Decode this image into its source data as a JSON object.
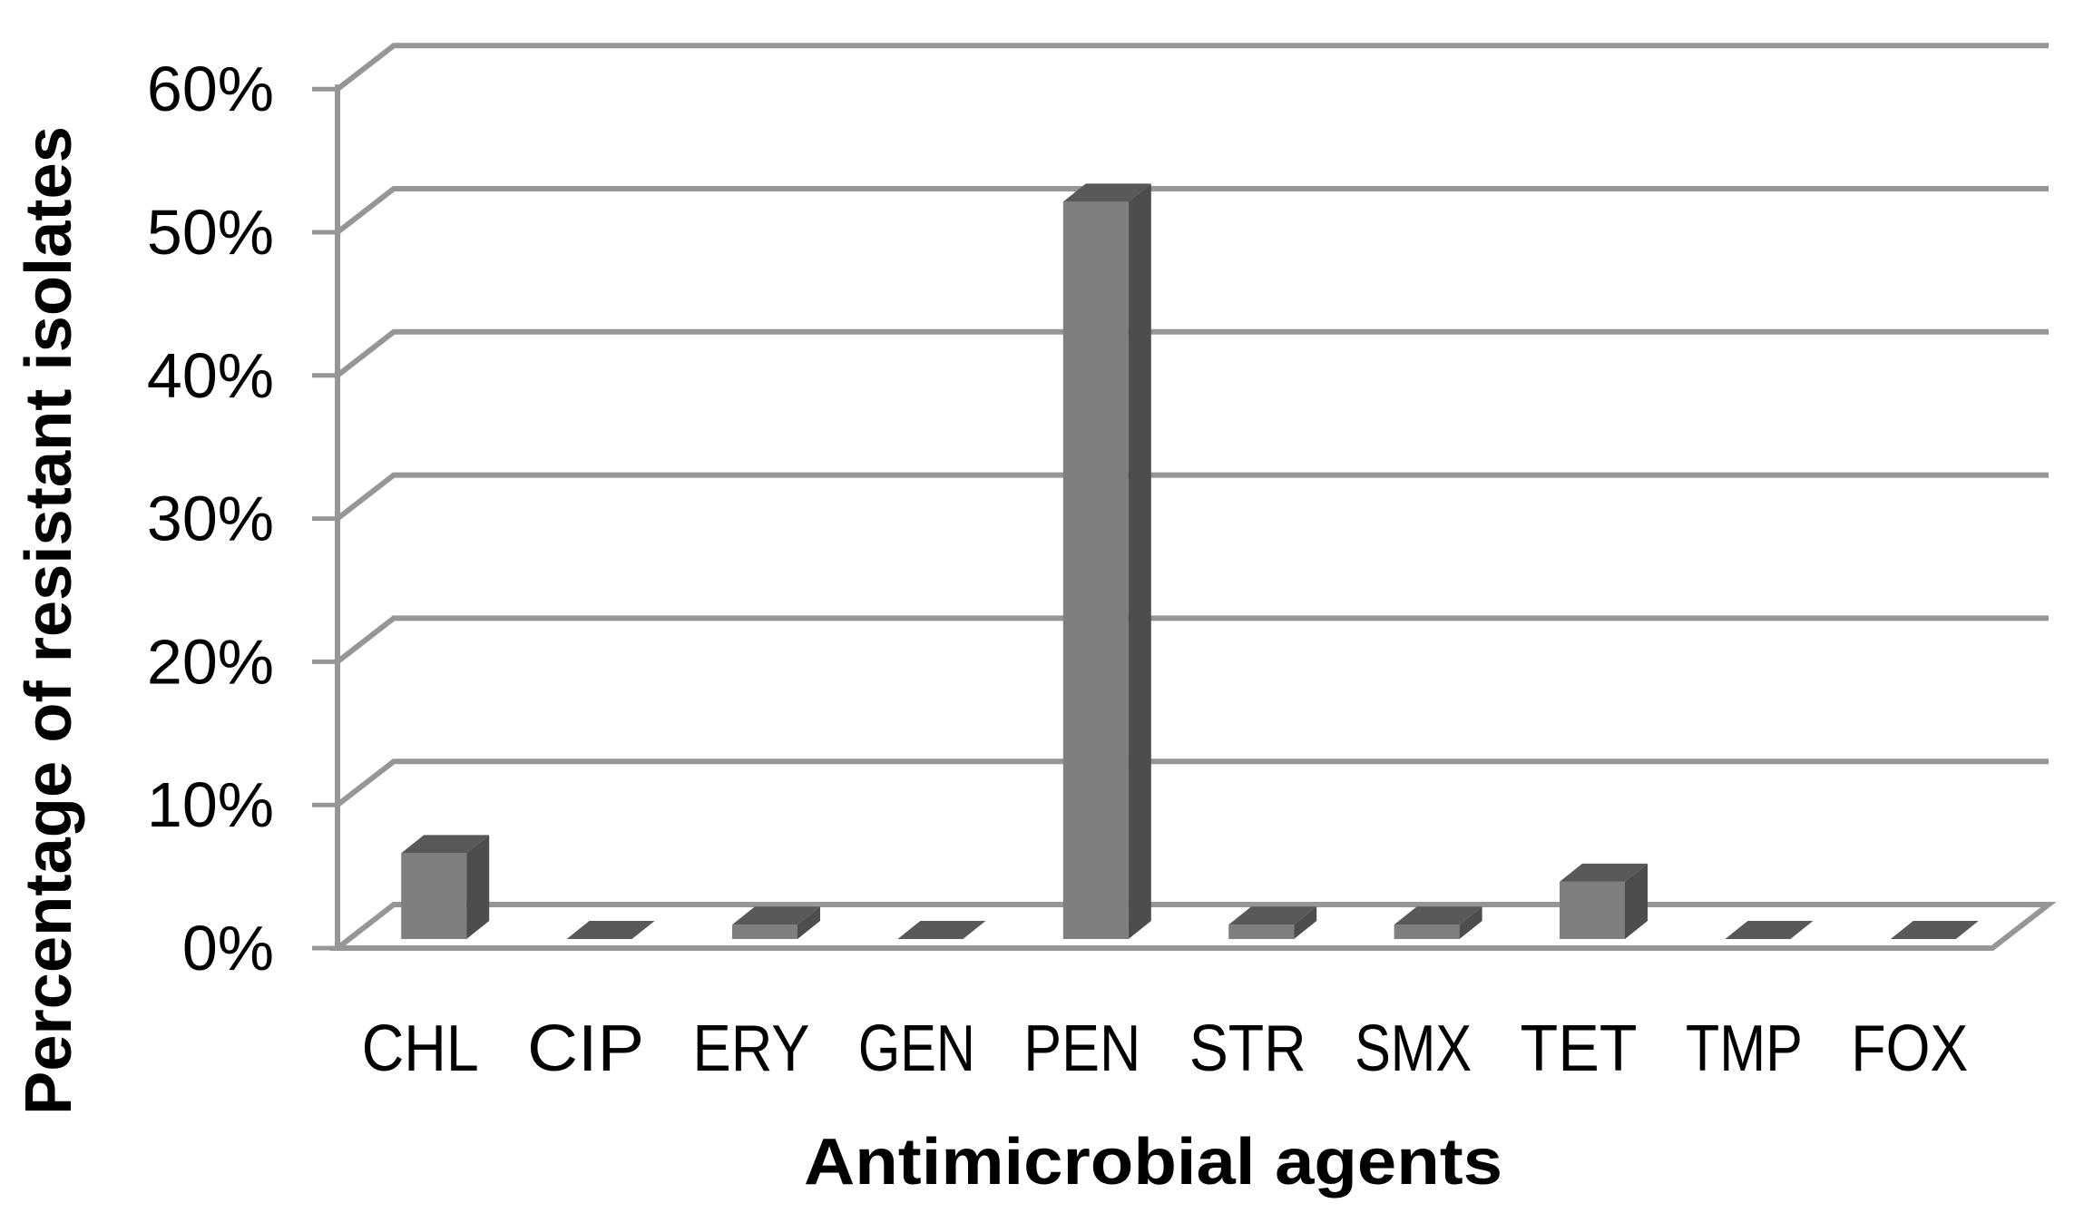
{
  "chart_data": {
    "type": "bar",
    "style": "3d-column",
    "title": "",
    "xlabel": "Antimicrobial agents",
    "ylabel": "Percentage of resistant isolates",
    "categories": [
      "CHL",
      "CIP",
      "ERY",
      "GEN",
      "PEN",
      "STR",
      "SMX",
      "TET",
      "TMP",
      "FOX"
    ],
    "values": [
      6,
      0,
      1,
      0,
      51.5,
      1,
      1,
      4,
      0,
      0
    ],
    "y_ticks": [
      "0%",
      "10%",
      "20%",
      "30%",
      "40%",
      "50%",
      "60%"
    ],
    "ylim": [
      0,
      60
    ],
    "y_tick_step": 10,
    "grid": true,
    "legend": false,
    "colors": {
      "bar_front": "#7f7f7f",
      "bar_top": "#595959",
      "bar_side": "#4d4d4d",
      "gridline": "#969696",
      "text": "#000000",
      "background": "#ffffff"
    }
  }
}
